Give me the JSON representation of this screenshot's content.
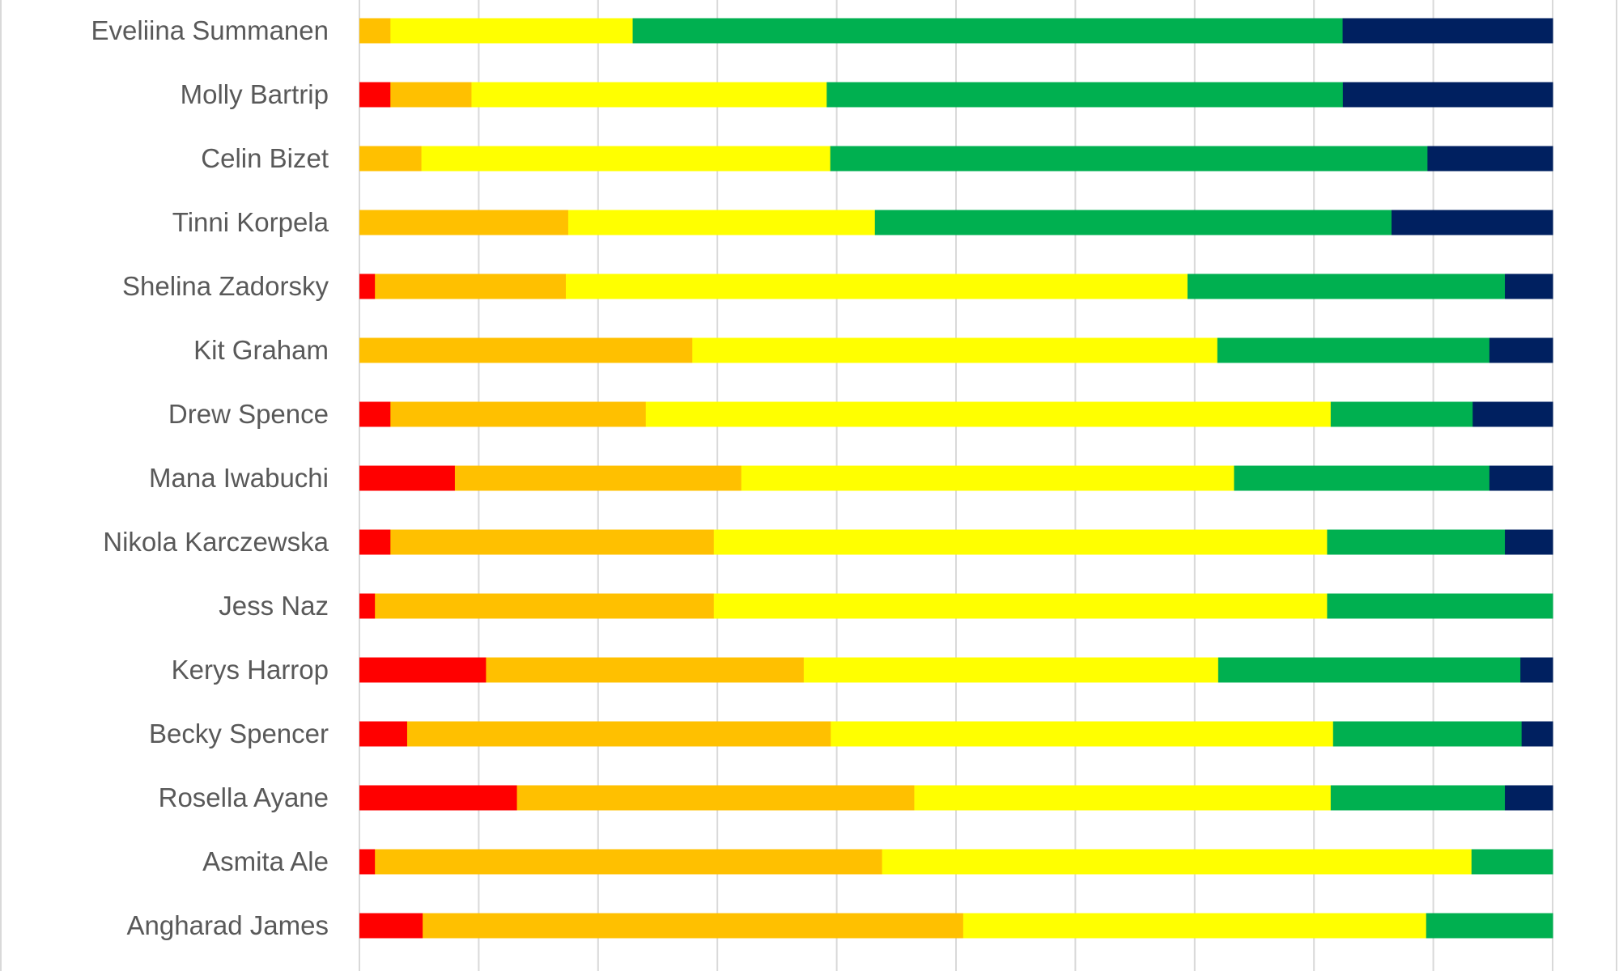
{
  "chart_data": {
    "type": "bar",
    "orientation": "horizontal",
    "stacked": "percent",
    "title": "",
    "xlabel": "",
    "ylabel": "",
    "xlim": [
      0,
      100
    ],
    "grid": true,
    "categories": [
      "Eveliina Summanen",
      "Molly Bartrip",
      "Celin Bizet",
      "Tinni Korpela",
      "Shelina Zadorsky",
      "Kit Graham",
      "Drew Spence",
      "Mana Iwabuchi",
      "Nikola Karczewska",
      "Jess Naz",
      "Kerys Harrop",
      "Becky Spencer",
      "Rosella Ayane",
      "Asmita Ale",
      "Angharad James"
    ],
    "series": [
      {
        "name": "red",
        "color": "#ff0000",
        "values": [
          0,
          2.6,
          0,
          0,
          1.3,
          0,
          2.6,
          8.0,
          2.6,
          1.3,
          10.6,
          4.0,
          13.2,
          1.3,
          5.3
        ]
      },
      {
        "name": "orange",
        "color": "#ffc000",
        "values": [
          2.6,
          6.8,
          5.2,
          17.5,
          16.0,
          27.9,
          21.4,
          24.0,
          27.1,
          28.4,
          26.6,
          35.5,
          33.3,
          42.5,
          45.3
        ]
      },
      {
        "name": "yellow",
        "color": "#ffff00",
        "values": [
          20.3,
          29.8,
          34.3,
          25.7,
          52.1,
          44.0,
          57.4,
          41.3,
          51.4,
          51.4,
          34.7,
          42.1,
          34.9,
          49.4,
          38.8
        ]
      },
      {
        "name": "green",
        "color": "#00b050",
        "values": [
          59.5,
          43.3,
          50.1,
          43.3,
          26.6,
          22.8,
          11.9,
          21.4,
          14.9,
          18.9,
          25.3,
          15.8,
          14.6,
          6.8,
          10.6
        ]
      },
      {
        "name": "navy",
        "color": "#002060",
        "values": [
          17.6,
          17.6,
          10.5,
          13.5,
          4.0,
          5.3,
          6.7,
          5.3,
          4.0,
          0,
          2.7,
          2.6,
          4.0,
          0,
          0
        ]
      }
    ]
  }
}
